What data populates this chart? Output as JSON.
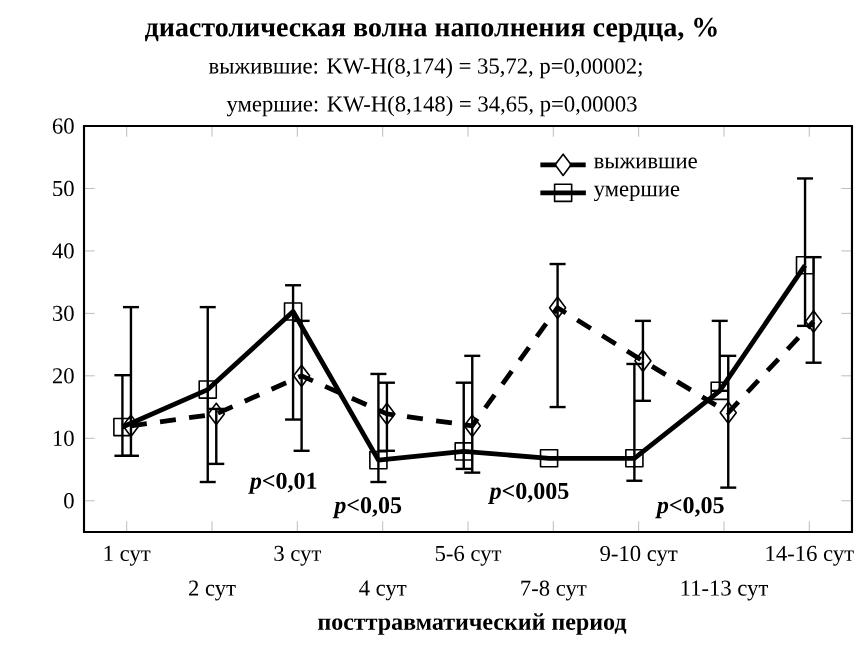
{
  "chart_data": {
    "type": "line",
    "title": "диастолическая волна наполнения сердца, %",
    "subtitle": "выжившие:  KW-H(8,174) = 35,72, p=0,00002;",
    "xlabel": "посттравматический период",
    "categories": [
      "1 сут",
      "2 сут",
      "3 сут",
      "4 сут",
      "5-6 сут",
      "7-8 сут",
      "9-10 сут",
      "11-13 сут",
      "14-16 сут"
    ],
    "ylim": [
      -5,
      60
    ],
    "yticks": [
      0,
      10,
      20,
      30,
      40,
      50,
      60
    ],
    "legend": "top right",
    "grid": false,
    "series": [
      {
        "name": "выжившие",
        "color": "#000000",
        "marker": "diamond",
        "line_style": "dashed",
        "values": [
          12,
          13.9,
          20,
          13.9,
          12,
          30.9,
          22.4,
          14.1,
          28.7
        ],
        "errors": [
          [
            7.2,
            31
          ],
          [
            5.9,
            14.7
          ],
          [
            8,
            28.8
          ],
          [
            8,
            18.9
          ],
          [
            4.5,
            23.2
          ],
          [
            15,
            37.9
          ],
          [
            16,
            28.8
          ],
          [
            2.1,
            23.2
          ],
          [
            22.1,
            39
          ]
        ]
      },
      {
        "name": "умершие",
        "color": "#000000",
        "marker": "square",
        "line_style": "solid",
        "values": [
          11.8,
          17.8,
          30.3,
          6.5,
          7.9,
          6.8,
          6.8,
          17.6,
          37.7
        ],
        "errors": [
          [
            7.2,
            20.1
          ],
          [
            3,
            31
          ],
          [
            13,
            34.5
          ],
          [
            3,
            20.3
          ],
          [
            5.1,
            18.9
          ],
          null,
          [
            3.2,
            21.9
          ],
          [
            17.6,
            28.8
          ],
          [
            28,
            51.6
          ]
        ]
      }
    ],
    "annotations": [
      "умершие:  KW-H(8,148) = 34,65, p=0,00003",
      "*p*<0,01",
      "*p*<0,05",
      "*p*<0,005",
      "*p*<0,05"
    ]
  }
}
